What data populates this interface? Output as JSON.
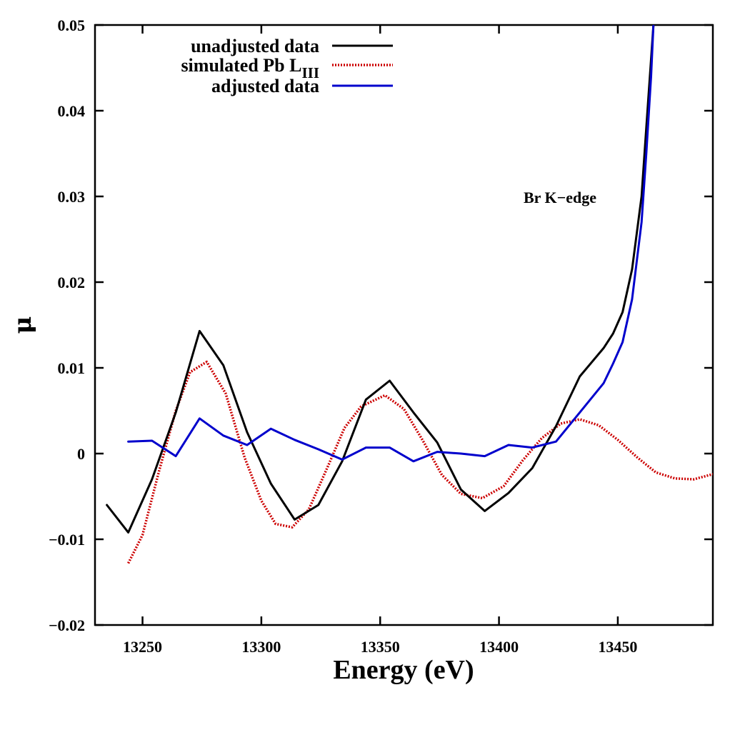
{
  "chart_data": {
    "type": "line",
    "title": "",
    "xlabel": "Energy (eV)",
    "ylabel": "μ",
    "xlim": [
      13230,
      13490
    ],
    "ylim": [
      -0.02,
      0.05
    ],
    "xticks": [
      13250,
      13300,
      13350,
      13400,
      13450
    ],
    "xtick_labels": [
      "13250",
      "13300",
      "13350",
      "13400",
      "13450"
    ],
    "yticks": [
      -0.02,
      -0.01,
      0,
      0.01,
      0.02,
      0.03,
      0.04,
      0.05
    ],
    "ytick_labels": [
      "−0.02",
      "−0.01",
      "0",
      "0.01",
      "0.02",
      "0.03",
      "0.04",
      "0.05"
    ],
    "grid": false,
    "legend_position": "top-left",
    "annotation": "Br K−edge",
    "series": [
      {
        "name": "unadjusted data",
        "legend_main": "unadjusted data",
        "legend_sub": "",
        "color": "#000000",
        "style": "solid",
        "x": [
          13235,
          13244,
          13254,
          13264,
          13274,
          13284,
          13294,
          13304,
          13314,
          13324,
          13334,
          13344,
          13354,
          13364,
          13374,
          13384,
          13394,
          13404,
          13414,
          13424,
          13434,
          13444,
          13448,
          13452,
          13456,
          13460,
          13462,
          13464,
          13465
        ],
        "values": [
          -0.006,
          -0.0092,
          -0.003,
          0.0048,
          0.0143,
          0.0103,
          0.0025,
          -0.0035,
          -0.0077,
          -0.006,
          -0.0009,
          0.0063,
          0.0085,
          0.0048,
          0.0013,
          -0.0042,
          -0.0067,
          -0.0046,
          -0.0017,
          0.0032,
          0.009,
          0.0123,
          0.014,
          0.0165,
          0.0215,
          0.03,
          0.038,
          0.046,
          0.05
        ]
      },
      {
        "name": "simulated Pb LIII",
        "legend_main": "simulated Pb L",
        "legend_sub": "III",
        "color": "#cc0000",
        "style": "dotted",
        "x": [
          13244,
          13250,
          13257,
          13264,
          13270,
          13277,
          13285,
          13293,
          13300,
          13306,
          13313,
          13320,
          13328,
          13335,
          13342,
          13352,
          13360,
          13368,
          13376,
          13384,
          13393,
          13402,
          13410,
          13418,
          13426,
          13434,
          13442,
          13450,
          13458,
          13466,
          13474,
          13482,
          13490
        ],
        "values": [
          -0.0128,
          -0.0095,
          -0.002,
          0.005,
          0.0095,
          0.0107,
          0.007,
          -0.0005,
          -0.0055,
          -0.0082,
          -0.0086,
          -0.0065,
          -0.0015,
          0.003,
          0.0055,
          0.0068,
          0.0052,
          0.0015,
          -0.0025,
          -0.0047,
          -0.0052,
          -0.0038,
          -0.0008,
          0.0018,
          0.0035,
          0.004,
          0.0033,
          0.0016,
          -0.0004,
          -0.0022,
          -0.0029,
          -0.003,
          -0.0024
        ]
      },
      {
        "name": "adjusted data",
        "legend_main": "adjusted data",
        "legend_sub": "",
        "color": "#0000cc",
        "style": "solid",
        "x": [
          13244,
          13254,
          13264,
          13274,
          13284,
          13294,
          13304,
          13314,
          13324,
          13334,
          13344,
          13354,
          13364,
          13374,
          13384,
          13394,
          13404,
          13414,
          13424,
          13434,
          13444,
          13448,
          13452,
          13456,
          13460,
          13462,
          13464,
          13465
        ],
        "values": [
          0.0014,
          0.0015,
          -0.0003,
          0.0041,
          0.0021,
          0.001,
          0.0029,
          0.0016,
          0.0005,
          -0.0007,
          0.0007,
          0.0007,
          -0.0009,
          0.0002,
          0.0,
          -0.0003,
          0.001,
          0.0007,
          0.0014,
          0.0048,
          0.0082,
          0.0105,
          0.013,
          0.018,
          0.027,
          0.035,
          0.044,
          0.05
        ]
      }
    ]
  }
}
